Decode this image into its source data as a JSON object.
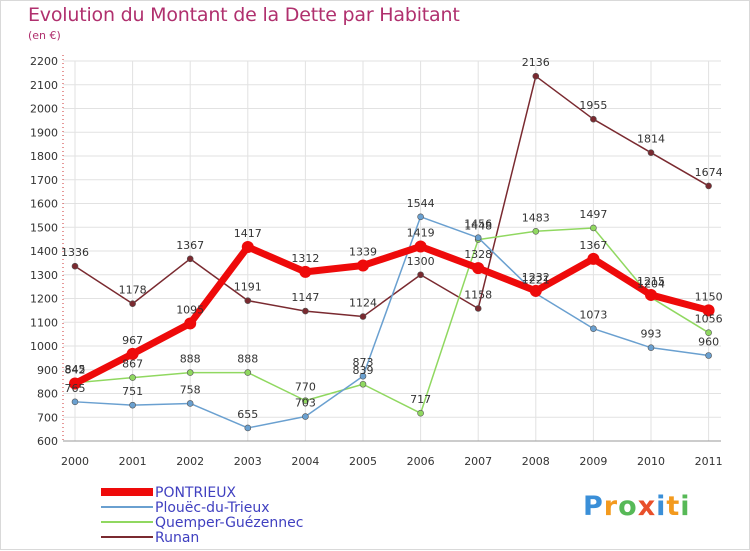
{
  "title": "Evolution du Montant de la Dette par Habitant",
  "subtitle": "(en €)",
  "logo": {
    "letters": [
      "P",
      "r",
      "o",
      "x",
      "i",
      "t",
      "i"
    ],
    "colors": [
      "#3a8fd8",
      "#f39a1e",
      "#57b957",
      "#e84f2a",
      "#3a8fd8",
      "#f39a1e",
      "#57b957"
    ]
  },
  "chart_data": {
    "type": "line",
    "x": [
      "2000",
      "2001",
      "2002",
      "2003",
      "2004",
      "2005",
      "2006",
      "2007",
      "2008",
      "2009",
      "2010",
      "2011"
    ],
    "ylim": [
      600,
      2200
    ],
    "yticks": [
      600,
      700,
      800,
      900,
      1000,
      1100,
      1200,
      1300,
      1400,
      1500,
      1600,
      1700,
      1800,
      1900,
      2000,
      2100,
      2200
    ],
    "grid": true,
    "legend_position": "bottom-left",
    "series": [
      {
        "name": "Runan",
        "color": "#7a2a30",
        "width": 1.5,
        "values": [
          1336,
          1178,
          1367,
          1191,
          1147,
          1124,
          1300,
          1158,
          2136,
          1955,
          1814,
          1674
        ]
      },
      {
        "name": "Quemper-Guézennec",
        "color": "#90d860",
        "width": 1.5,
        "values": [
          845,
          867,
          888,
          888,
          770,
          839,
          717,
          1448,
          1483,
          1497,
          1204,
          1056
        ]
      },
      {
        "name": "Plouëc-du-Trieux",
        "color": "#6aa0d0",
        "width": 1.5,
        "values": [
          765,
          751,
          758,
          655,
          703,
          873,
          1544,
          1456,
          1221,
          1073,
          993,
          960
        ]
      },
      {
        "name": "PONTRIEUX",
        "color": "#ee0a0a",
        "width": 7,
        "values": [
          842,
          967,
          1095,
          1417,
          1312,
          1339,
          1419,
          1328,
          1232,
          1367,
          1215,
          1150
        ]
      }
    ]
  }
}
